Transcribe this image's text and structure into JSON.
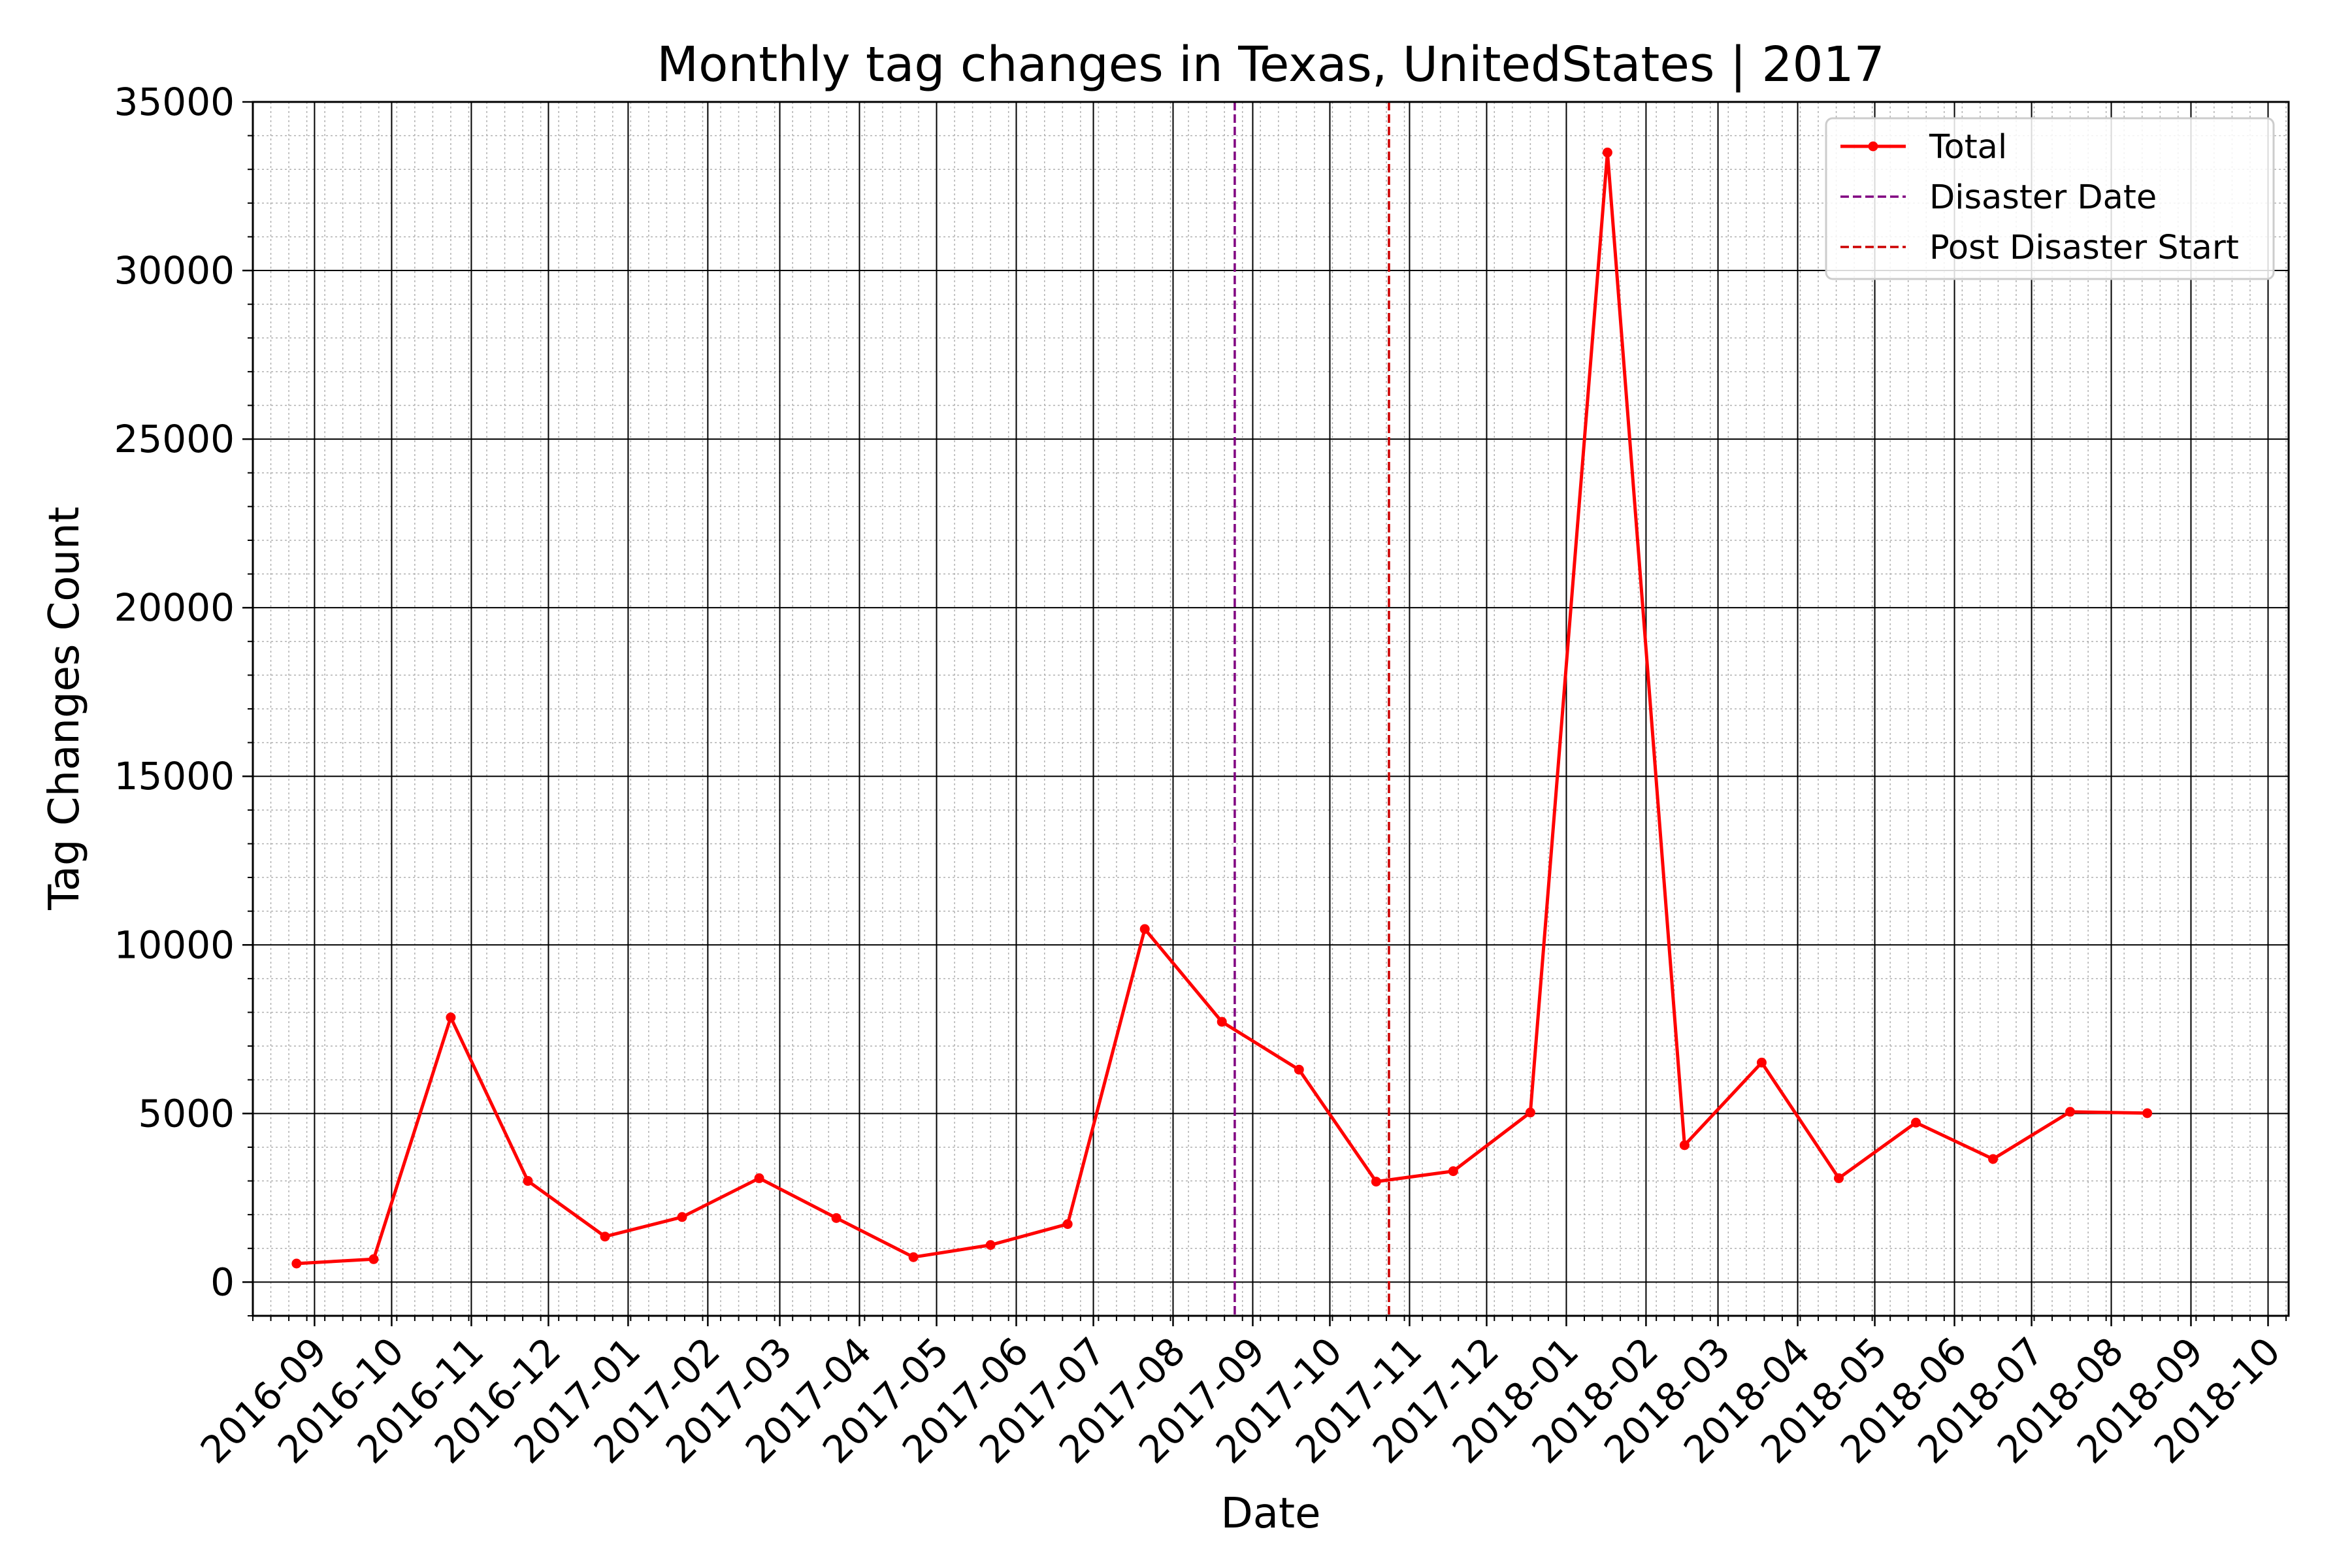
{
  "chart_data": {
    "type": "line",
    "title": "Monthly tag changes in Texas, UnitedStates | 2017",
    "xlabel": "Date",
    "ylabel": "Tag Changes Count",
    "x_ticks": [
      "2016-09",
      "2016-10",
      "2016-11",
      "2016-12",
      "2017-01",
      "2017-02",
      "2017-03",
      "2017-04",
      "2017-05",
      "2017-06",
      "2017-07",
      "2017-08",
      "2017-09",
      "2017-10",
      "2017-11",
      "2017-12",
      "2018-01",
      "2018-02",
      "2018-03",
      "2018-04",
      "2018-05",
      "2018-06",
      "2018-07",
      "2018-08",
      "2018-09",
      "2018-10"
    ],
    "y_ticks": [
      0,
      5000,
      10000,
      15000,
      20000,
      25000,
      30000,
      35000
    ],
    "ylim": [
      -1000,
      35000
    ],
    "xlim": [
      "2016-08-08",
      "2018-10-09"
    ],
    "grid": true,
    "legend_position": "top-right",
    "series": [
      {
        "name": "Total",
        "color": "#ff0000",
        "style": "solid-with-markers",
        "x": [
          "2016-08-25",
          "2016-09-24",
          "2016-10-24",
          "2016-11-23",
          "2016-12-23",
          "2017-01-22",
          "2017-02-21",
          "2017-03-23",
          "2017-04-22",
          "2017-05-22",
          "2017-06-21",
          "2017-07-21",
          "2017-08-20",
          "2017-09-19",
          "2017-10-19",
          "2017-11-18",
          "2017-12-18",
          "2018-01-17",
          "2018-02-16",
          "2018-03-18",
          "2018-04-17",
          "2018-05-17",
          "2018-06-16",
          "2018-07-16",
          "2018-08-15"
        ],
        "values": [
          550,
          680,
          7850,
          3000,
          1350,
          1930,
          3080,
          1900,
          740,
          1100,
          1720,
          10470,
          7720,
          6300,
          2980,
          3290,
          5030,
          33500,
          4060,
          6510,
          3080,
          4730,
          3650,
          5050,
          5010
        ]
      }
    ],
    "vlines": [
      {
        "name": "Disaster Date",
        "x": "2017-08-25",
        "color": "#800080",
        "style": "dashed"
      },
      {
        "name": "Post Disaster Start",
        "x": "2017-10-24",
        "color": "#cc0000",
        "style": "dashed"
      }
    ]
  }
}
